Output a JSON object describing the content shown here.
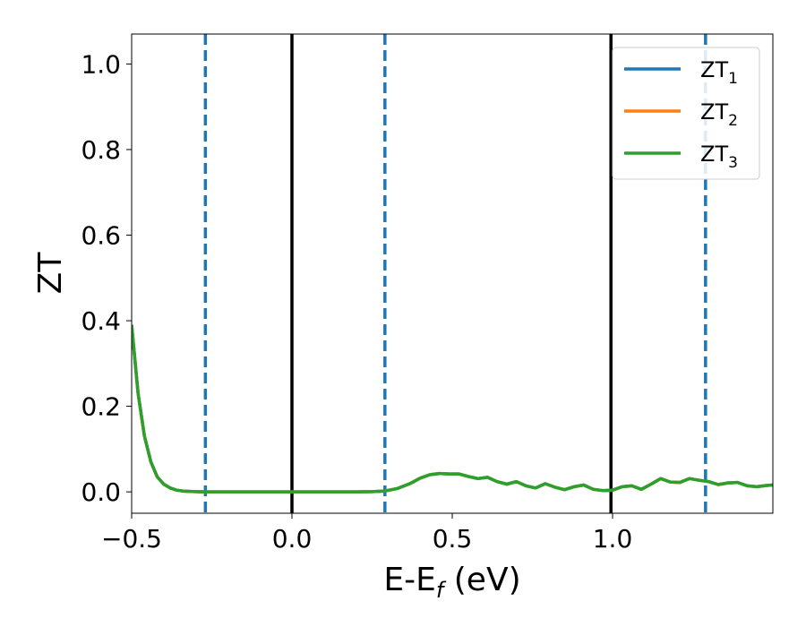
{
  "chart_data": {
    "type": "line",
    "title": "",
    "xlabel": "E-E",
    "xlabel_sub": "f",
    "xlabel_unit": " (eV)",
    "ylabel": "ZT",
    "xlim": [
      -0.5,
      1.5
    ],
    "ylim": [
      -0.05,
      1.07
    ],
    "xticks": [
      -0.5,
      0.0,
      0.5,
      1.0
    ],
    "xtick_labels": [
      "−0.5",
      "0.0",
      "0.5",
      "1.0"
    ],
    "yticks": [
      0.0,
      0.2,
      0.4,
      0.6,
      0.8,
      1.0
    ],
    "ytick_labels": [
      "0.0",
      "0.2",
      "0.4",
      "0.6",
      "0.8",
      "1.0"
    ],
    "grid": false,
    "legend_position": "top-right",
    "vlines_dashed": [
      -0.27,
      0.29,
      1.29
    ],
    "vlines_solid": [
      0.0,
      0.995
    ],
    "series": [
      {
        "name": "ZT",
        "sub": "1",
        "color": "#1f77b4",
        "x": [
          -0.5,
          -0.48,
          -0.46,
          -0.44,
          -0.42,
          -0.4,
          -0.38,
          -0.36,
          -0.34,
          -0.32,
          -0.3,
          -0.27,
          -0.2,
          -0.1,
          0.0,
          0.1,
          0.2,
          0.25,
          0.29,
          0.33,
          0.37,
          0.4,
          0.43,
          0.46,
          0.49,
          0.52,
          0.55,
          0.58,
          0.61,
          0.64,
          0.67,
          0.7,
          0.73,
          0.76,
          0.79,
          0.82,
          0.85,
          0.88,
          0.91,
          0.94,
          0.97,
          1.0,
          1.03,
          1.06,
          1.09,
          1.12,
          1.15,
          1.18,
          1.21,
          1.24,
          1.27,
          1.3,
          1.33,
          1.36,
          1.39,
          1.42,
          1.45,
          1.48,
          1.5
        ],
        "y": [
          0.39,
          0.23,
          0.13,
          0.07,
          0.035,
          0.018,
          0.009,
          0.004,
          0.002,
          0.001,
          0.0005,
          0.0,
          0.0,
          0.0,
          0.0,
          0.0,
          0.0,
          0.0005,
          0.002,
          0.008,
          0.02,
          0.032,
          0.04,
          0.043,
          0.042,
          0.042,
          0.036,
          0.031,
          0.034,
          0.024,
          0.018,
          0.024,
          0.014,
          0.009,
          0.019,
          0.011,
          0.005,
          0.012,
          0.016,
          0.006,
          0.003,
          0.004,
          0.012,
          0.014,
          0.006,
          0.018,
          0.031,
          0.023,
          0.022,
          0.031,
          0.027,
          0.024,
          0.017,
          0.021,
          0.022,
          0.014,
          0.012,
          0.015,
          0.016
        ]
      },
      {
        "name": "ZT",
        "sub": "2",
        "color": "#ff7f0e",
        "x": [
          -0.5,
          -0.48,
          -0.46,
          -0.44,
          -0.42,
          -0.4,
          -0.38,
          -0.36,
          -0.34,
          -0.32,
          -0.3,
          -0.27,
          -0.2,
          -0.1,
          0.0,
          0.1,
          0.2,
          0.25,
          0.29,
          0.33,
          0.37,
          0.4,
          0.43,
          0.46,
          0.49,
          0.52,
          0.55,
          0.58,
          0.61,
          0.64,
          0.67,
          0.7,
          0.73,
          0.76,
          0.79,
          0.82,
          0.85,
          0.88,
          0.91,
          0.94,
          0.97,
          1.0,
          1.03,
          1.06,
          1.09,
          1.12,
          1.15,
          1.18,
          1.21,
          1.24,
          1.27,
          1.3,
          1.33,
          1.36,
          1.39,
          1.42,
          1.45,
          1.48,
          1.5
        ],
        "y": [
          0.39,
          0.23,
          0.13,
          0.07,
          0.035,
          0.018,
          0.009,
          0.004,
          0.002,
          0.001,
          0.0005,
          0.0,
          0.0,
          0.0,
          0.0,
          0.0,
          0.0,
          0.0005,
          0.002,
          0.008,
          0.02,
          0.032,
          0.04,
          0.043,
          0.042,
          0.042,
          0.036,
          0.031,
          0.034,
          0.024,
          0.018,
          0.024,
          0.014,
          0.009,
          0.019,
          0.011,
          0.005,
          0.012,
          0.016,
          0.006,
          0.003,
          0.004,
          0.012,
          0.014,
          0.006,
          0.018,
          0.031,
          0.023,
          0.022,
          0.031,
          0.027,
          0.024,
          0.017,
          0.021,
          0.022,
          0.014,
          0.012,
          0.015,
          0.016
        ]
      },
      {
        "name": "ZT",
        "sub": "3",
        "color": "#2ca02c",
        "x": [
          -0.5,
          -0.48,
          -0.46,
          -0.44,
          -0.42,
          -0.4,
          -0.38,
          -0.36,
          -0.34,
          -0.32,
          -0.3,
          -0.27,
          -0.2,
          -0.1,
          0.0,
          0.1,
          0.2,
          0.25,
          0.29,
          0.33,
          0.37,
          0.4,
          0.43,
          0.46,
          0.49,
          0.52,
          0.55,
          0.58,
          0.61,
          0.64,
          0.67,
          0.7,
          0.73,
          0.76,
          0.79,
          0.82,
          0.85,
          0.88,
          0.91,
          0.94,
          0.97,
          1.0,
          1.03,
          1.06,
          1.09,
          1.12,
          1.15,
          1.18,
          1.21,
          1.24,
          1.27,
          1.3,
          1.33,
          1.36,
          1.39,
          1.42,
          1.45,
          1.48,
          1.5
        ],
        "y": [
          0.39,
          0.23,
          0.13,
          0.07,
          0.035,
          0.018,
          0.009,
          0.004,
          0.002,
          0.001,
          0.0005,
          0.0,
          0.0,
          0.0,
          0.0,
          0.0,
          0.0,
          0.0005,
          0.002,
          0.008,
          0.02,
          0.032,
          0.04,
          0.043,
          0.042,
          0.042,
          0.036,
          0.031,
          0.034,
          0.024,
          0.018,
          0.024,
          0.014,
          0.009,
          0.019,
          0.011,
          0.005,
          0.012,
          0.016,
          0.006,
          0.003,
          0.004,
          0.012,
          0.014,
          0.006,
          0.018,
          0.031,
          0.023,
          0.022,
          0.031,
          0.027,
          0.024,
          0.017,
          0.021,
          0.022,
          0.014,
          0.012,
          0.015,
          0.016
        ]
      }
    ]
  }
}
